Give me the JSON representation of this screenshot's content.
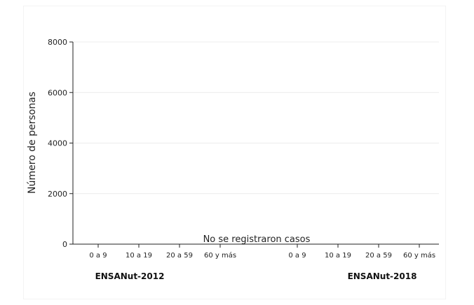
{
  "chart_data": {
    "type": "bar",
    "title": "",
    "ylabel": "Número de personas",
    "ylim": [
      0,
      8000
    ],
    "yticks": [
      0,
      2000,
      4000,
      6000,
      8000
    ],
    "grid": true,
    "groups": [
      {
        "label": "ENSANut-2012",
        "categories": [
          "0 a 9",
          "10 a 19",
          "20 a 59",
          "60 y más"
        ],
        "values": [
          0,
          0,
          0,
          0
        ]
      },
      {
        "label": "ENSANut-2018",
        "categories": [
          "0 a 9",
          "10 a 19",
          "20 a 59",
          "60 y más"
        ],
        "values": [
          0,
          0,
          0,
          0
        ]
      }
    ],
    "annotation": "No se registraron casos"
  }
}
